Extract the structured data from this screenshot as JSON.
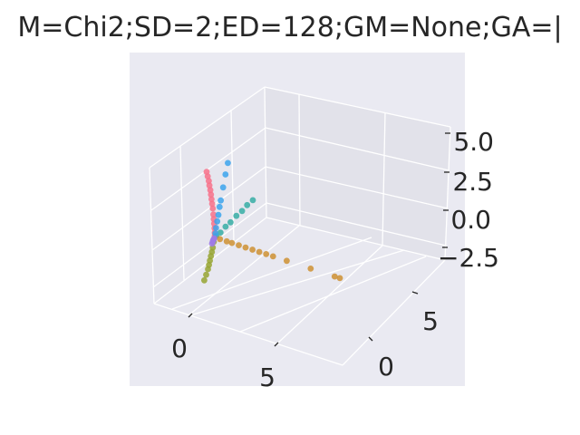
{
  "chart_data": {
    "type": "scatter",
    "title": "M=Chi2;SD=2;ED=128;GM=None;GA=|",
    "projection": "3d",
    "style": "seaborn-darkgrid",
    "xlabel": "",
    "ylabel": "",
    "zlabel": "",
    "x_ticks": [
      "0",
      "5"
    ],
    "y_ticks": [
      "0",
      "5"
    ],
    "z_ticks": [
      "5.0",
      "2.5",
      "0.0",
      "−2.5"
    ],
    "xlim": [
      -2,
      8.5
    ],
    "ylim": [
      -3.5,
      8.5
    ],
    "zlim": [
      -3.5,
      6.5
    ],
    "grid": true,
    "legend": "none",
    "series": [
      {
        "color": "#f77189",
        "points": [
          [
            -0.4,
            -0.4,
            4.3
          ],
          [
            -0.35,
            -0.35,
            4.0
          ],
          [
            -0.3,
            -0.3,
            3.7
          ],
          [
            -0.27,
            -0.27,
            3.4
          ],
          [
            -0.23,
            -0.23,
            3.1
          ],
          [
            -0.2,
            -0.2,
            2.8
          ],
          [
            -0.17,
            -0.17,
            2.5
          ],
          [
            -0.14,
            -0.14,
            2.2
          ],
          [
            -0.11,
            -0.11,
            1.9
          ],
          [
            -0.08,
            -0.08,
            1.5
          ],
          [
            -0.06,
            -0.06,
            1.2
          ],
          [
            -0.04,
            -0.04,
            0.9
          ],
          [
            -0.02,
            -0.02,
            0.6
          ],
          [
            -0.01,
            -0.01,
            0.3
          ],
          [
            0.0,
            0.0,
            0.1
          ]
        ]
      },
      {
        "color": "#36ada4",
        "points": [
          [
            0.0,
            0.2,
            0.0
          ],
          [
            0.0,
            0.8,
            0.0
          ],
          [
            0.0,
            1.5,
            0.1
          ],
          [
            0.0,
            2.2,
            0.1
          ],
          [
            0.0,
            3.0,
            0.2
          ],
          [
            0.0,
            3.8,
            0.2
          ],
          [
            0.0,
            4.5,
            0.3
          ],
          [
            0.0,
            5.3,
            0.3
          ]
        ]
      },
      {
        "color": "#3ba3ec",
        "points": [
          [
            0.05,
            -0.05,
            0.3
          ],
          [
            0.1,
            -0.1,
            0.7
          ],
          [
            0.2,
            -0.2,
            1.2
          ],
          [
            0.3,
            -0.3,
            1.7
          ],
          [
            0.4,
            -0.4,
            2.3
          ],
          [
            0.5,
            -0.5,
            2.8
          ],
          [
            0.7,
            -0.7,
            3.8
          ],
          [
            0.9,
            -0.9,
            4.8
          ],
          [
            1.1,
            -1.1,
            5.7
          ]
        ]
      },
      {
        "color": "#ce9032",
        "points": [
          [
            0.3,
            0.0,
            0.0
          ],
          [
            0.7,
            0.0,
            0.0
          ],
          [
            1.0,
            0.0,
            0.0
          ],
          [
            1.4,
            0.0,
            0.0
          ],
          [
            1.8,
            0.0,
            0.0
          ],
          [
            2.2,
            0.0,
            0.0
          ],
          [
            2.6,
            0.0,
            0.0
          ],
          [
            3.0,
            0.0,
            0.0
          ],
          [
            3.4,
            0.0,
            0.0
          ],
          [
            4.2,
            0.0,
            0.0
          ],
          [
            5.6,
            0.0,
            0.0
          ],
          [
            7.0,
            0.0,
            0.0
          ],
          [
            7.3,
            0.0,
            0.0
          ]
        ]
      },
      {
        "color": "#97a431",
        "points": [
          [
            -0.05,
            0.0,
            -0.3
          ],
          [
            -0.1,
            0.0,
            -0.7
          ],
          [
            -0.15,
            0.0,
            -1.0
          ],
          [
            -0.2,
            0.0,
            -1.3
          ],
          [
            -0.25,
            0.0,
            -1.6
          ],
          [
            -0.3,
            0.0,
            -1.9
          ],
          [
            -0.35,
            0.0,
            -2.2
          ],
          [
            -0.45,
            0.0,
            -2.6
          ],
          [
            -0.55,
            0.0,
            -3.0
          ]
        ]
      },
      {
        "color": "#9e7ae8",
        "points": [
          [
            -0.05,
            0.05,
            -0.1
          ],
          [
            -0.1,
            0.1,
            -0.2
          ],
          [
            -0.15,
            0.15,
            -0.3
          ],
          [
            -0.2,
            0.2,
            -0.45
          ],
          [
            -0.25,
            0.25,
            -0.6
          ]
        ]
      }
    ]
  }
}
